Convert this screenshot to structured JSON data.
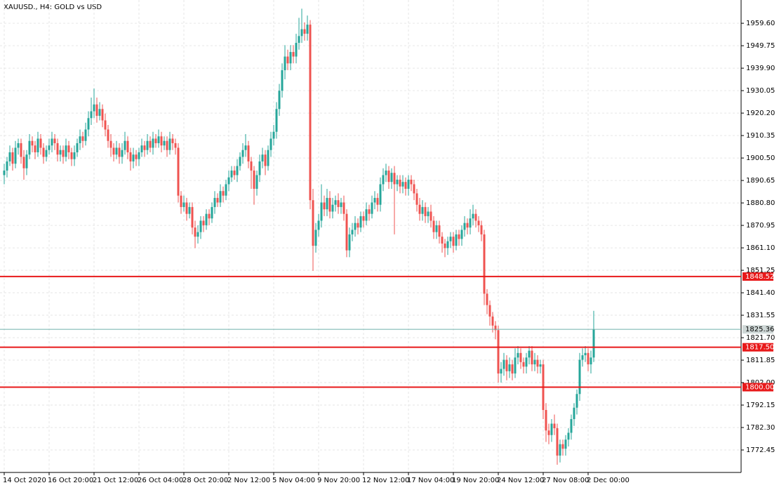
{
  "chart_data": {
    "type": "candlestick",
    "title": "XAUUSD., H4:  GOLD vs USD",
    "x": [
      "14 Oct 2020",
      null,
      null,
      null,
      null,
      null,
      null,
      null,
      null,
      null,
      null,
      null,
      null,
      null,
      null,
      null,
      "16 Oct 20:00",
      null,
      null,
      null,
      null,
      null,
      null,
      null,
      null,
      null,
      null,
      null,
      null,
      null,
      null,
      null,
      "21 Oct 12:00",
      null,
      null,
      null,
      null,
      null,
      null,
      null,
      null,
      null,
      null,
      null,
      null,
      null,
      null,
      null,
      "26 Oct 04:00",
      null,
      null,
      null,
      null,
      null,
      null,
      null,
      null,
      null,
      null,
      null,
      null,
      null,
      null,
      null,
      "28 Oct 20:00",
      null,
      null,
      null,
      null,
      null,
      null,
      null,
      null,
      null,
      null,
      null,
      null,
      null,
      null,
      null,
      "2 Nov 12:00",
      null,
      null,
      null,
      null,
      null,
      null,
      null,
      null,
      null,
      null,
      null,
      null,
      null,
      null,
      null,
      "5 Nov 04:00",
      null,
      null,
      null,
      null,
      null,
      null,
      null,
      null,
      null,
      null,
      null,
      null,
      null,
      null,
      null,
      "9 Nov 20:00",
      null,
      null,
      null,
      null,
      null,
      null,
      null,
      null,
      null,
      null,
      null,
      null,
      null,
      null,
      null,
      "12 Nov 12:00",
      null,
      null,
      null,
      null,
      null,
      null,
      null,
      null,
      null,
      null,
      null,
      null,
      null,
      null,
      null,
      "17 Nov 04:00",
      null,
      null,
      null,
      null,
      null,
      null,
      null,
      null,
      null,
      null,
      null,
      null,
      null,
      null,
      null,
      "19 Nov 20:00",
      null,
      null,
      null,
      null,
      null,
      null,
      null,
      null,
      null,
      null,
      null,
      null,
      null,
      null,
      null,
      "24 Nov 12:00",
      null,
      null,
      null,
      null,
      null,
      null,
      null,
      null,
      null,
      null,
      null,
      null,
      null,
      null,
      null,
      "27 Nov 08:00",
      null,
      null,
      null,
      null,
      null,
      null,
      null,
      null,
      null,
      null,
      null,
      null,
      null,
      null,
      null,
      "2 Dec 00:00",
      null,
      null
    ],
    "open": [
      1893,
      1895,
      1899,
      1903,
      1898,
      1905,
      1907,
      1901,
      1896,
      1902,
      1908,
      1906,
      1903,
      1909,
      1905,
      1901,
      1904,
      1906,
      1909,
      1907,
      1902,
      1904,
      1901,
      1906,
      1903,
      1900,
      1903,
      1907,
      1910,
      1908,
      1913,
      1918,
      1921,
      1924,
      1919,
      1922,
      1917,
      1913,
      1908,
      1905,
      1902,
      1905,
      1901,
      1904,
      1908,
      1903,
      1899,
      1902,
      1900,
      1903,
      1906,
      1904,
      1908,
      1905,
      1909,
      1907,
      1910,
      1906,
      1908,
      1904,
      1909,
      1907,
      1905,
      1884,
      1879,
      1881,
      1876,
      1879,
      1870,
      1866,
      1868,
      1873,
      1871,
      1876,
      1874,
      1879,
      1883,
      1881,
      1886,
      1884,
      1889,
      1892,
      1895,
      1893,
      1897,
      1901,
      1904,
      1906,
      1899,
      1895,
      1887,
      1893,
      1899,
      1902,
      1897,
      1904,
      1909,
      1912,
      1922,
      1930,
      1939,
      1945,
      1942,
      1947,
      1945,
      1951,
      1954,
      1957,
      1955,
      1959,
      1882,
      1862,
      1869,
      1873,
      1881,
      1878,
      1883,
      1877,
      1880,
      1882,
      1879,
      1881,
      1876,
      1860,
      1867,
      1869,
      1872,
      1870,
      1875,
      1873,
      1878,
      1876,
      1881,
      1883,
      1880,
      1889,
      1893,
      1895,
      1890,
      1894,
      1889,
      1891,
      1888,
      1890,
      1887,
      1891,
      1889,
      1885,
      1880,
      1876,
      1879,
      1875,
      1877,
      1873,
      1868,
      1871,
      1866,
      1863,
      1861,
      1864,
      1866,
      1862,
      1867,
      1865,
      1869,
      1872,
      1870,
      1874,
      1876,
      1873,
      1871,
      1867,
      1841,
      1836,
      1831,
      1827,
      1825,
      1806,
      1808,
      1812,
      1807,
      1810,
      1806,
      1813,
      1815,
      1811,
      1809,
      1813,
      1816,
      1810,
      1812,
      1809,
      1810,
      1790,
      1781,
      1779,
      1784,
      1782,
      1770,
      1775,
      1773,
      1777,
      1780,
      1786,
      1791,
      1797,
      1812,
      1814,
      1815,
      1810,
      1813
    ],
    "high": [
      1898,
      1901,
      1906,
      1905,
      1908,
      1909,
      1909,
      1904,
      1904,
      1911,
      1910,
      1908,
      1912,
      1911,
      1907,
      1906,
      1909,
      1912,
      1911,
      1909,
      1906,
      1906,
      1909,
      1908,
      1905,
      1906,
      1909,
      1913,
      1912,
      1916,
      1921,
      1927,
      1931,
      1927,
      1925,
      1924,
      1920,
      1915,
      1911,
      1907,
      1908,
      1907,
      1907,
      1912,
      1910,
      1905,
      1905,
      1904,
      1905,
      1909,
      1908,
      1911,
      1910,
      1912,
      1911,
      1913,
      1912,
      1910,
      1910,
      1912,
      1911,
      1909,
      1907,
      1886,
      1884,
      1883,
      1881,
      1881,
      1873,
      1871,
      1875,
      1875,
      1878,
      1878,
      1881,
      1886,
      1885,
      1889,
      1888,
      1891,
      1895,
      1897,
      1897,
      1900,
      1903,
      1907,
      1911,
      1908,
      1901,
      1897,
      1895,
      1902,
      1905,
      1904,
      1906,
      1912,
      1915,
      1925,
      1933,
      1942,
      1950,
      1948,
      1950,
      1950,
      1955,
      1962,
      1966,
      1960,
      1963,
      1961,
      1887,
      1872,
      1876,
      1889,
      1884,
      1887,
      1886,
      1883,
      1884,
      1885,
      1883,
      1884,
      1878,
      1870,
      1872,
      1875,
      1874,
      1877,
      1877,
      1881,
      1880,
      1884,
      1886,
      1885,
      1892,
      1896,
      1898,
      1897,
      1896,
      1897,
      1893,
      1893,
      1893,
      1892,
      1893,
      1893,
      1891,
      1887,
      1883,
      1882,
      1881,
      1879,
      1880,
      1875,
      1873,
      1873,
      1868,
      1865,
      1866,
      1868,
      1868,
      1869,
      1869,
      1871,
      1875,
      1874,
      1878,
      1880,
      1878,
      1875,
      1873,
      1869,
      1843,
      1838,
      1833,
      1829,
      1827,
      1811,
      1815,
      1814,
      1813,
      1812,
      1817,
      1818,
      1817,
      1813,
      1815,
      1818,
      1818,
      1815,
      1814,
      1812,
      1812,
      1793,
      1784,
      1786,
      1788,
      1784,
      1777,
      1777,
      1779,
      1782,
      1788,
      1793,
      1799,
      1815,
      1817,
      1818,
      1817,
      1816,
      1833.5
    ],
    "low": [
      1889,
      1892,
      1897,
      1895,
      1896,
      1902,
      1898,
      1891,
      1893,
      1900,
      1903,
      1900,
      1901,
      1902,
      1898,
      1899,
      1902,
      1903,
      1904,
      1899,
      1899,
      1898,
      1899,
      1900,
      1897,
      1897,
      1901,
      1904,
      1905,
      1906,
      1910,
      1915,
      1918,
      1916,
      1917,
      1914,
      1910,
      1905,
      1901,
      1899,
      1900,
      1898,
      1898,
      1902,
      1900,
      1895,
      1896,
      1897,
      1897,
      1901,
      1901,
      1902,
      1903,
      1902,
      1905,
      1905,
      1903,
      1904,
      1901,
      1902,
      1904,
      1902,
      1881,
      1876,
      1877,
      1873,
      1874,
      1867,
      1861,
      1863,
      1865,
      1868,
      1869,
      1871,
      1872,
      1876,
      1879,
      1879,
      1881,
      1882,
      1886,
      1890,
      1891,
      1890,
      1895,
      1898,
      1901,
      1896,
      1887,
      1880,
      1884,
      1890,
      1896,
      1893,
      1895,
      1901,
      1906,
      1909,
      1919,
      1927,
      1935,
      1939,
      1939,
      1942,
      1942,
      1948,
      1951,
      1952,
      1952,
      1878,
      1851,
      1859,
      1866,
      1870,
      1875,
      1875,
      1874,
      1874,
      1877,
      1876,
      1876,
      1873,
      1857,
      1857,
      1864,
      1866,
      1867,
      1868,
      1870,
      1871,
      1873,
      1874,
      1878,
      1877,
      1877,
      1886,
      1890,
      1887,
      1887,
      1867,
      1886,
      1885,
      1885,
      1884,
      1884,
      1886,
      1882,
      1877,
      1873,
      1873,
      1872,
      1872,
      1870,
      1865,
      1865,
      1863,
      1859,
      1857,
      1858,
      1861,
      1859,
      1860,
      1862,
      1862,
      1866,
      1867,
      1867,
      1871,
      1870,
      1868,
      1864,
      1836,
      1832,
      1827,
      1824,
      1821,
      1802,
      1802,
      1805,
      1803,
      1804,
      1803,
      1804,
      1810,
      1808,
      1806,
      1806,
      1810,
      1807,
      1807,
      1806,
      1806,
      1786,
      1776,
      1775,
      1776,
      1779,
      1766,
      1767,
      1770,
      1770,
      1774,
      1777,
      1783,
      1788,
      1794,
      1809,
      1811,
      1807,
      1806,
      1811
    ],
    "close": [
      1895,
      1899,
      1903,
      1898,
      1905,
      1907,
      1901,
      1896,
      1902,
      1908,
      1906,
      1903,
      1909,
      1905,
      1901,
      1904,
      1906,
      1909,
      1907,
      1902,
      1904,
      1901,
      1906,
      1903,
      1900,
      1903,
      1907,
      1910,
      1908,
      1913,
      1918,
      1921,
      1924,
      1919,
      1922,
      1917,
      1913,
      1908,
      1905,
      1902,
      1905,
      1901,
      1904,
      1908,
      1903,
      1899,
      1902,
      1900,
      1903,
      1906,
      1904,
      1908,
      1905,
      1909,
      1907,
      1910,
      1906,
      1908,
      1904,
      1909,
      1907,
      1905,
      1884,
      1879,
      1881,
      1876,
      1879,
      1870,
      1866,
      1868,
      1873,
      1871,
      1876,
      1874,
      1879,
      1883,
      1881,
      1886,
      1884,
      1889,
      1892,
      1895,
      1893,
      1897,
      1901,
      1904,
      1906,
      1899,
      1895,
      1887,
      1893,
      1899,
      1902,
      1897,
      1904,
      1909,
      1912,
      1922,
      1930,
      1939,
      1945,
      1942,
      1947,
      1945,
      1951,
      1954,
      1957,
      1955,
      1959,
      1882,
      1862,
      1869,
      1873,
      1881,
      1878,
      1883,
      1877,
      1880,
      1882,
      1879,
      1881,
      1876,
      1860,
      1867,
      1869,
      1872,
      1870,
      1875,
      1873,
      1878,
      1876,
      1881,
      1883,
      1880,
      1889,
      1893,
      1895,
      1890,
      1894,
      1889,
      1891,
      1888,
      1890,
      1887,
      1891,
      1889,
      1885,
      1880,
      1876,
      1879,
      1875,
      1877,
      1873,
      1868,
      1871,
      1866,
      1863,
      1861,
      1864,
      1866,
      1862,
      1867,
      1865,
      1869,
      1872,
      1870,
      1874,
      1876,
      1873,
      1871,
      1867,
      1841,
      1836,
      1831,
      1827,
      1825,
      1806,
      1808,
      1812,
      1807,
      1810,
      1806,
      1813,
      1815,
      1811,
      1809,
      1813,
      1816,
      1810,
      1812,
      1809,
      1810,
      1790,
      1781,
      1779,
      1784,
      1782,
      1770,
      1775,
      1773,
      1777,
      1780,
      1786,
      1791,
      1797,
      1812,
      1814,
      1815,
      1810,
      1813,
      1825.4
    ],
    "up_color": "#26a69a",
    "down_color": "#ef5350",
    "ylim": [
      1762.6,
      1969.8
    ],
    "yticks": [
      {
        "value": 1959.6,
        "label": "1959.60"
      },
      1949.75,
      {
        "value": 1939.9,
        "label": "1939.90"
      },
      1930.05,
      {
        "value": 1920.2,
        "label": "1920.20"
      },
      1910.35,
      {
        "value": 1900.5,
        "label": "1900.50"
      },
      1890.65,
      {
        "value": 1880.8,
        "label": "1880.80"
      },
      1870.95,
      {
        "value": 1861.1,
        "label": "1861.10"
      },
      1851.25,
      {
        "value": 1841.4,
        "label": "1841.40"
      },
      1831.55,
      {
        "value": 1821.7,
        "label": "1821.70"
      },
      1811.85,
      {
        "value": 1802,
        "label": "1802.00"
      },
      1792.15,
      {
        "value": 1782.3,
        "label": "1782.30"
      },
      1772.45
    ],
    "grid": true,
    "levels": [
      1848.52,
      {
        "value": 1817.5,
        "label": "1817.50"
      },
      {
        "value": 1800,
        "label": "1800.00"
      }
    ],
    "level_color": "#e8191a",
    "last_price": 1825.36,
    "last_price_color": "#6fb0ab"
  }
}
